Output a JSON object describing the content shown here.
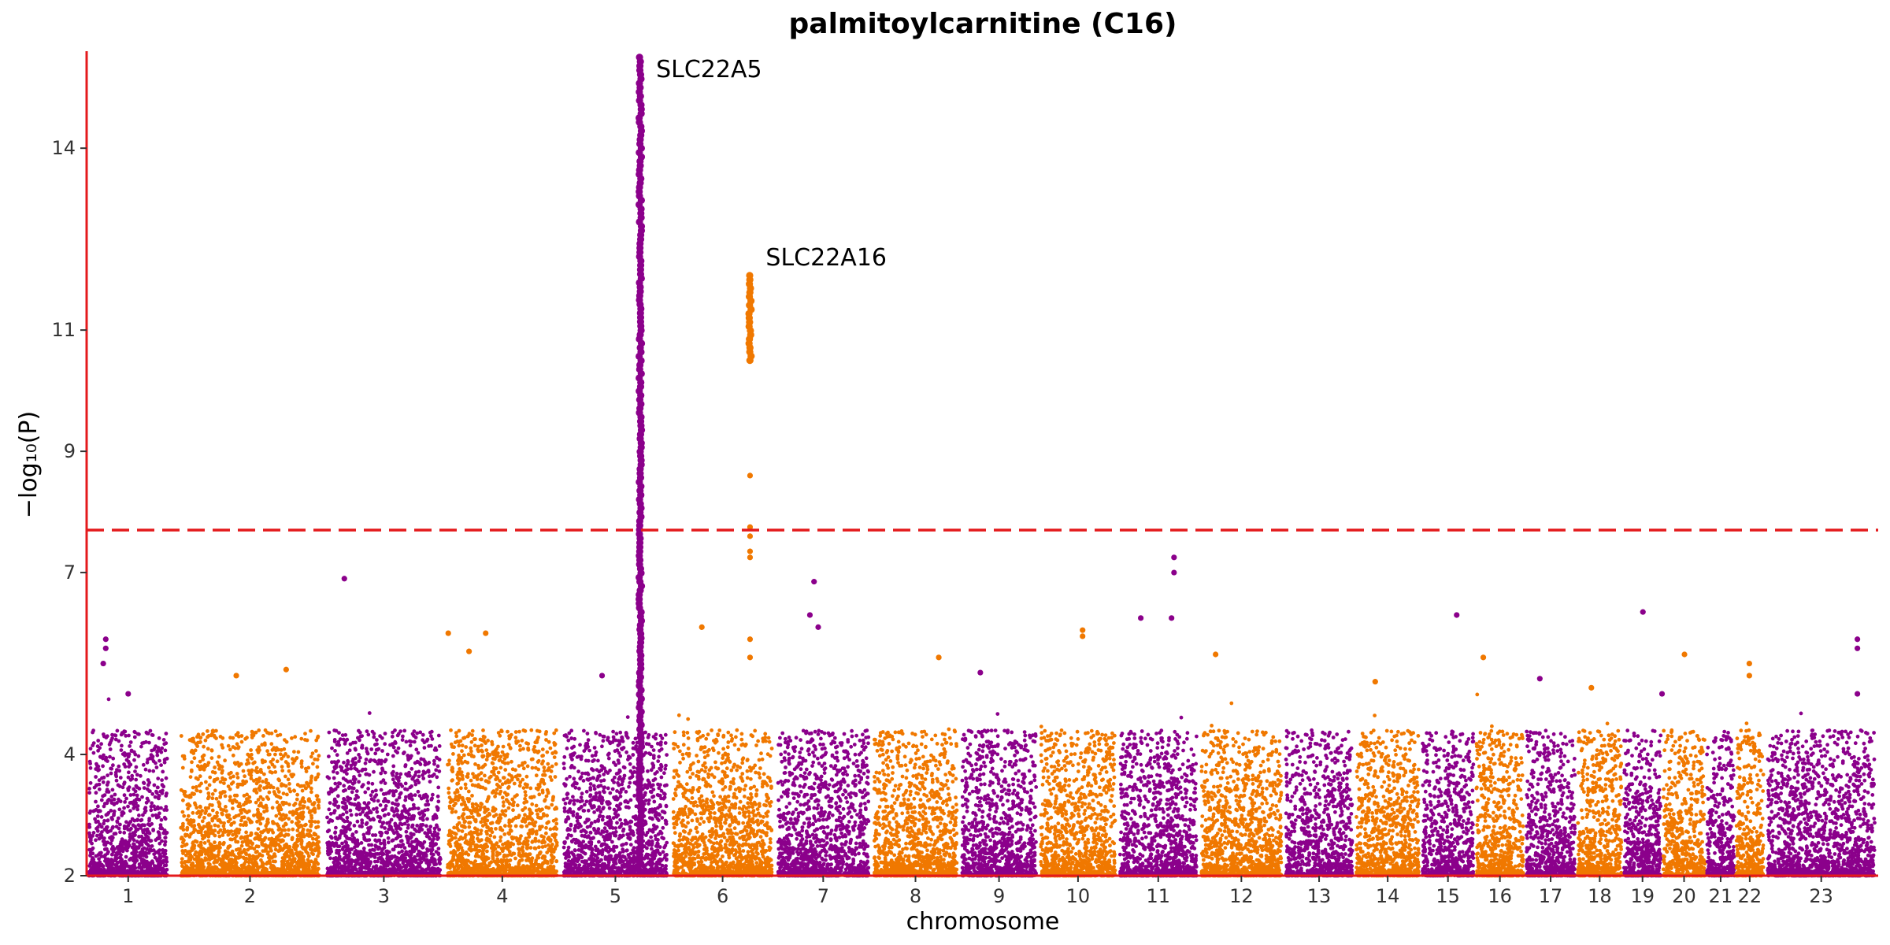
{
  "chart_data": {
    "type": "scatter",
    "subtype": "manhattan",
    "title": "palmitoylcarnitine (C16)",
    "xlabel": "chromosome",
    "ylabel": "−log₁₀(P)",
    "ylim": [
      2,
      15.6
    ],
    "yticks": [
      2,
      4,
      7,
      9,
      11,
      14
    ],
    "significance_threshold": 7.7,
    "threshold_color": "#e41a1c",
    "axis_color": "#e41a1c",
    "colors": {
      "odd": "#8b008b",
      "even": "#f07800"
    },
    "grid": false,
    "legend": "none",
    "chromosomes": [
      {
        "label": "1",
        "start": 0,
        "end": 1
      },
      {
        "label": "2",
        "start": 1.08,
        "end": 2.85
      },
      {
        "label": "3",
        "start": 2.85,
        "end": 4.3
      },
      {
        "label": "4",
        "start": 4.3,
        "end": 5.7
      },
      {
        "label": "5",
        "start": 5.7,
        "end": 7.02
      },
      {
        "label": "6",
        "start": 7.02,
        "end": 8.28
      },
      {
        "label": "7",
        "start": 8.28,
        "end": 9.44
      },
      {
        "label": "8",
        "start": 9.44,
        "end": 10.5
      },
      {
        "label": "9",
        "start": 10.5,
        "end": 11.45
      },
      {
        "label": "10",
        "start": 11.45,
        "end": 12.4
      },
      {
        "label": "11",
        "start": 12.4,
        "end": 13.38
      },
      {
        "label": "12",
        "start": 13.38,
        "end": 14.4
      },
      {
        "label": "13",
        "start": 14.4,
        "end": 15.25
      },
      {
        "label": "14",
        "start": 15.25,
        "end": 16.05
      },
      {
        "label": "15",
        "start": 16.05,
        "end": 16.7
      },
      {
        "label": "16",
        "start": 16.7,
        "end": 17.3
      },
      {
        "label": "17",
        "start": 17.3,
        "end": 17.92
      },
      {
        "label": "18",
        "start": 17.92,
        "end": 18.48
      },
      {
        "label": "19",
        "start": 18.48,
        "end": 18.95
      },
      {
        "label": "20",
        "start": 18.95,
        "end": 19.48
      },
      {
        "label": "21",
        "start": 19.48,
        "end": 19.83
      },
      {
        "label": "22",
        "start": 19.83,
        "end": 20.18
      },
      {
        "label": "23",
        "start": 20.18,
        "end": 21.55
      }
    ],
    "highlight_points": [
      {
        "chr": "1",
        "pos": 0.23,
        "y": 5.9
      },
      {
        "chr": "1",
        "pos": 0.23,
        "y": 5.75
      },
      {
        "chr": "1",
        "pos": 0.2,
        "y": 5.5
      },
      {
        "chr": "1",
        "pos": 0.5,
        "y": 5.0
      },
      {
        "chr": "2",
        "pos": 1.8,
        "y": 5.3
      },
      {
        "chr": "2",
        "pos": 2.4,
        "y": 5.4
      },
      {
        "chr": "3",
        "pos": 3.1,
        "y": 6.9
      },
      {
        "chr": "4",
        "pos": 4.35,
        "y": 6.0
      },
      {
        "chr": "4",
        "pos": 4.6,
        "y": 5.7
      },
      {
        "chr": "4",
        "pos": 4.8,
        "y": 6.0
      },
      {
        "chr": "5",
        "pos": 6.2,
        "y": 5.3
      },
      {
        "chr": "6",
        "pos": 7.4,
        "y": 6.1
      },
      {
        "chr": "6",
        "pos": 7.98,
        "y": 8.6
      },
      {
        "chr": "6",
        "pos": 7.98,
        "y": 7.75
      },
      {
        "chr": "6",
        "pos": 7.98,
        "y": 7.6
      },
      {
        "chr": "6",
        "pos": 7.98,
        "y": 7.35
      },
      {
        "chr": "6",
        "pos": 7.98,
        "y": 7.25
      },
      {
        "chr": "6",
        "pos": 7.98,
        "y": 5.9
      },
      {
        "chr": "6",
        "pos": 7.98,
        "y": 5.6
      },
      {
        "chr": "7",
        "pos": 8.75,
        "y": 6.85
      },
      {
        "chr": "7",
        "pos": 8.7,
        "y": 6.3
      },
      {
        "chr": "7",
        "pos": 8.8,
        "y": 6.1
      },
      {
        "chr": "8",
        "pos": 10.25,
        "y": 5.6
      },
      {
        "chr": "9",
        "pos": 10.75,
        "y": 5.35
      },
      {
        "chr": "10",
        "pos": 11.98,
        "y": 6.05
      },
      {
        "chr": "10",
        "pos": 11.98,
        "y": 5.95
      },
      {
        "chr": "11",
        "pos": 12.68,
        "y": 6.25
      },
      {
        "chr": "11",
        "pos": 13.08,
        "y": 7.25
      },
      {
        "chr": "11",
        "pos": 13.08,
        "y": 7.0
      },
      {
        "chr": "11",
        "pos": 13.05,
        "y": 6.25
      },
      {
        "chr": "12",
        "pos": 13.58,
        "y": 5.65
      },
      {
        "chr": "14",
        "pos": 15.5,
        "y": 5.2
      },
      {
        "chr": "15",
        "pos": 16.48,
        "y": 6.3
      },
      {
        "chr": "16",
        "pos": 16.8,
        "y": 5.6
      },
      {
        "chr": "17",
        "pos": 17.48,
        "y": 5.25
      },
      {
        "chr": "18",
        "pos": 18.1,
        "y": 5.1
      },
      {
        "chr": "19",
        "pos": 18.72,
        "y": 6.35
      },
      {
        "chr": "19",
        "pos": 18.95,
        "y": 5.0
      },
      {
        "chr": "20",
        "pos": 19.22,
        "y": 5.65
      },
      {
        "chr": "22",
        "pos": 20.0,
        "y": 5.5
      },
      {
        "chr": "22",
        "pos": 20.0,
        "y": 5.3
      },
      {
        "chr": "23",
        "pos": 21.3,
        "y": 5.9
      },
      {
        "chr": "23",
        "pos": 21.3,
        "y": 5.75
      },
      {
        "chr": "23",
        "pos": 21.3,
        "y": 5.0
      }
    ],
    "peak_columns": [
      {
        "chr": "5",
        "pos": 6.66,
        "y_from": 2.2,
        "y_to": 15.5,
        "color": "odd"
      },
      {
        "chr": "6",
        "pos": 7.98,
        "y_from": 10.5,
        "y_to": 11.9,
        "color": "even"
      }
    ],
    "annotations": [
      {
        "text": "SLC22A5",
        "x": 6.66,
        "y": 15.3
      },
      {
        "text": "SLC22A16",
        "x": 7.98,
        "y": 12.2
      }
    ]
  }
}
